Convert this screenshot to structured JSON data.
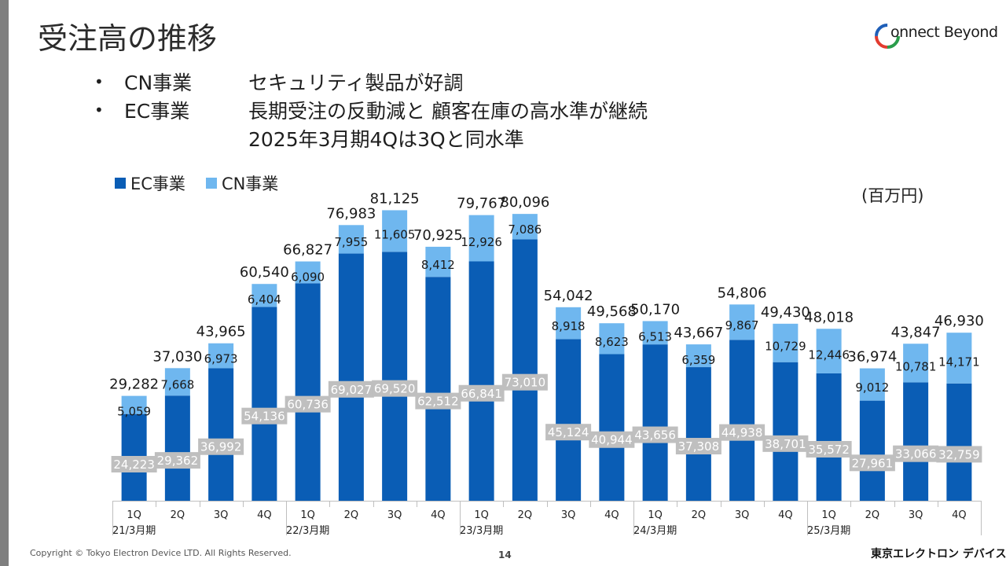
{
  "header": {
    "title": "受注高の推移",
    "logo_text": "onnect Beyond"
  },
  "bullets": [
    {
      "dot": "•",
      "segment": "CN事業",
      "text": "セキュリティ製品が好調"
    },
    {
      "dot": "•",
      "segment": "EC事業",
      "text": "長期受注の反動減と 顧客在庫の高水準が継続"
    },
    {
      "dot": "",
      "segment": "",
      "text": "2025年3月期4Qは3Qと同水準"
    }
  ],
  "colors": {
    "ec": "#0a5db5",
    "cn": "#6fb7ef",
    "label_box": "#bfbfbf"
  },
  "chart_data": {
    "type": "bar",
    "stacked": true,
    "unit": "(百万円)",
    "categories": [
      "1Q",
      "2Q",
      "3Q",
      "4Q",
      "1Q",
      "2Q",
      "3Q",
      "4Q",
      "1Q",
      "2Q",
      "3Q",
      "4Q",
      "1Q",
      "2Q",
      "3Q",
      "4Q",
      "1Q",
      "2Q",
      "3Q",
      "4Q"
    ],
    "groups": [
      {
        "label": "21/3月期",
        "from": 0,
        "to": 3
      },
      {
        "label": "22/3月期",
        "from": 4,
        "to": 7
      },
      {
        "label": "23/3月期",
        "from": 8,
        "to": 11
      },
      {
        "label": "24/3月期",
        "from": 12,
        "to": 15
      },
      {
        "label": "25/3月期",
        "from": 16,
        "to": 19
      }
    ],
    "series": [
      {
        "name": "EC事業",
        "values": [
          24223,
          29362,
          36992,
          54136,
          60736,
          69027,
          69520,
          62512,
          66841,
          73010,
          45124,
          40944,
          43656,
          37308,
          44938,
          38701,
          35572,
          27961,
          33066,
          32759
        ]
      },
      {
        "name": "CN事業",
        "values": [
          5059,
          7668,
          6973,
          6404,
          6090,
          7955,
          11605,
          8412,
          12926,
          7086,
          8918,
          8623,
          6513,
          6359,
          9867,
          10729,
          12446,
          9012,
          10781,
          14171
        ]
      }
    ],
    "totals": [
      29282,
      37030,
      43965,
      60540,
      66827,
      76983,
      81125,
      70925,
      79767,
      80096,
      54042,
      49568,
      50170,
      43667,
      54806,
      49430,
      48018,
      36974,
      43847,
      46930
    ],
    "ylim": [
      0,
      90000
    ],
    "legend_position": "top-left"
  },
  "footer": {
    "copyright": "Copyright © Tokyo Electron Device LTD. All Rights Reserved.",
    "page": "14",
    "brand": "東京エレクトロン デバイス"
  }
}
